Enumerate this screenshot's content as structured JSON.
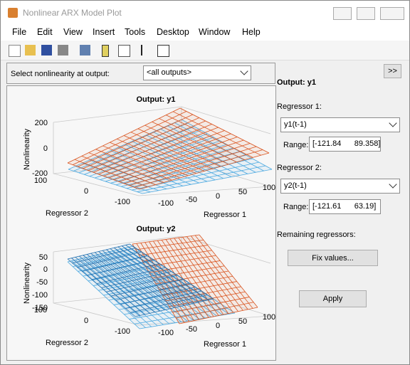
{
  "window": {
    "title": "Nonlinear ARX Model Plot"
  },
  "menu": [
    "File",
    "Edit",
    "View",
    "Insert",
    "Tools",
    "Desktop",
    "Window",
    "Help"
  ],
  "selector": {
    "label": "Select nonlinearity at output:",
    "value": "<all outputs>"
  },
  "plots": [
    {
      "title": "Output: y1",
      "z_label": "Nonlinearity",
      "x_label": "Regressor 1",
      "y_label": "Regressor 2",
      "z_ticks": [
        "200",
        "0",
        "-200"
      ],
      "y_ticks": [
        "100",
        "0",
        "-100"
      ],
      "x_ticks": [
        "-100",
        "-50",
        "0",
        "50",
        "100"
      ]
    },
    {
      "title": "Output: y2",
      "z_label": "Nonlinearity",
      "x_label": "Regressor 1",
      "y_label": "Regressor 2",
      "z_ticks": [
        "50",
        "0",
        "-50",
        "-100",
        "-150"
      ],
      "y_ticks": [
        "100",
        "0",
        "-100"
      ],
      "x_ticks": [
        "-100",
        "-50",
        "0",
        "50",
        "100"
      ]
    }
  ],
  "panel": {
    "expand": ">>",
    "output": "Output: y1",
    "regressor1": {
      "label": "Regressor 1:",
      "value": "y1(t-1)",
      "range_label": "Range:",
      "range": "[-121.84      89.358]"
    },
    "regressor2": {
      "label": "Regressor 2:",
      "value": "y2(t-1)",
      "range_label": "Range:",
      "range": "[-121.61      63.19]"
    },
    "remaining": "Remaining regressors:",
    "fix": "Fix values...",
    "apply": "Apply"
  }
}
